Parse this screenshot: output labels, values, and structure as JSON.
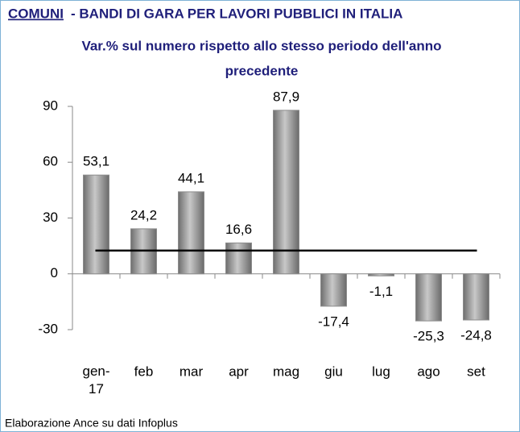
{
  "chart_data": {
    "type": "bar",
    "title_underlined": "COMUNI",
    "title": "- BANDI DI GARA PER LAVORI PUBBLICI IN ITALIA",
    "subtitle": [
      "Var.% sul numero  rispetto allo stesso periodo dell'anno",
      "precedente"
    ],
    "categories": [
      "gen-17",
      "feb",
      "mar",
      "apr",
      "mag",
      "giu",
      "lug",
      "ago",
      "set"
    ],
    "values": [
      53.1,
      24.2,
      44.1,
      16.6,
      87.9,
      -17.4,
      -1.1,
      -25.3,
      -24.8
    ],
    "value_labels": [
      "53,1",
      "24,2",
      "44,1",
      "16,6",
      "87,9",
      "-17,4",
      "-1,1",
      "-25,3",
      "-24,8"
    ],
    "color": "#8c8c8c",
    "reference_line": 12.5,
    "ylim": [
      -30,
      90
    ],
    "yticks": [
      -30,
      0,
      30,
      60,
      90
    ],
    "source": "Elaborazione Ance su dati Infoplus"
  }
}
